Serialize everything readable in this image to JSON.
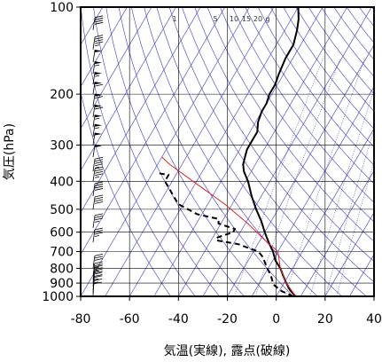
{
  "chart_data": {
    "type": "line",
    "xlabel": "気温(実線), 露点(破線)",
    "ylabel": "気圧(hPa)",
    "xlim": [
      -80,
      40
    ],
    "ylim": [
      1000,
      100
    ],
    "y_scale": "log",
    "x_ticks": [
      -80,
      -60,
      -40,
      -20,
      0,
      20,
      40
    ],
    "x_tick_labels": [
      "-80",
      "-60",
      "-40",
      "-20",
      "0",
      "20",
      "40"
    ],
    "y_ticks": [
      100,
      200,
      300,
      400,
      500,
      600,
      700,
      800,
      900,
      1000
    ],
    "y_tick_labels": [
      "100",
      "200",
      "300",
      "400",
      "500",
      "600",
      "700",
      "800",
      "900",
      "1000"
    ],
    "grid": true,
    "skew_deg_per_log_decade": 69,
    "mixing_ratio_labels": [
      {
        "value": 1,
        "text": "1"
      },
      {
        "value": 5,
        "text": "5"
      },
      {
        "value": 10,
        "text": "10"
      },
      {
        "value": 15,
        "text": "15"
      },
      {
        "value": 20,
        "text": "20"
      },
      {
        "value": null,
        "text": "g"
      }
    ],
    "colors": {
      "temperature": "#000000",
      "dewpoint": "#000000",
      "parcel": "#e02020",
      "background_lines": "#3a3ac8",
      "grid": "#000000"
    },
    "series": [
      {
        "key": "temperature",
        "style": "solid",
        "points": [
          [
            8,
            1000
          ],
          [
            4,
            950
          ],
          [
            1,
            900
          ],
          [
            -2,
            850
          ],
          [
            -5,
            800
          ],
          [
            -9,
            750
          ],
          [
            -12,
            700
          ],
          [
            -16,
            650
          ],
          [
            -20,
            600
          ],
          [
            -24,
            550
          ],
          [
            -29,
            500
          ],
          [
            -34,
            450
          ],
          [
            -39,
            400
          ],
          [
            -43,
            370
          ],
          [
            -45,
            350
          ],
          [
            -46,
            330
          ],
          [
            -47,
            310
          ],
          [
            -47,
            290
          ],
          [
            -47,
            270
          ],
          [
            -49,
            250
          ],
          [
            -50,
            230
          ],
          [
            -50,
            215
          ],
          [
            -51,
            200
          ],
          [
            -51,
            185
          ],
          [
            -52,
            170
          ],
          [
            -53,
            150
          ],
          [
            -53,
            135
          ],
          [
            -55,
            120
          ],
          [
            -57,
            110
          ],
          [
            -60,
            100
          ]
        ]
      },
      {
        "key": "dewpoint",
        "style": "dashed",
        "points": [
          [
            7,
            1000
          ],
          [
            1,
            960
          ],
          [
            -4,
            910
          ],
          [
            -7,
            850
          ],
          [
            -11,
            790
          ],
          [
            -15,
            730
          ],
          [
            -18,
            700
          ],
          [
            -28,
            660
          ],
          [
            -38,
            640
          ],
          [
            -38,
            625
          ],
          [
            -33,
            600
          ],
          [
            -33,
            585
          ],
          [
            -41,
            560
          ],
          [
            -42,
            540
          ],
          [
            -52,
            520
          ],
          [
            -62,
            480
          ],
          [
            -66,
            450
          ],
          [
            -70,
            420
          ],
          [
            -73,
            400
          ],
          [
            -73,
            380
          ],
          [
            -78,
            375
          ]
        ]
      },
      {
        "key": "parcel",
        "style": "solid",
        "points": [
          [
            8,
            1000
          ],
          [
            1,
            900
          ],
          [
            -5,
            800
          ],
          [
            -10,
            700
          ],
          [
            -18,
            640
          ],
          [
            -29,
            560
          ],
          [
            -43,
            480
          ],
          [
            -59,
            410
          ],
          [
            -75,
            350
          ],
          [
            -80,
            330
          ]
        ]
      }
    ],
    "wind_barbs": [
      {
        "p": 1000,
        "speed": 10,
        "dir": 200
      },
      {
        "p": 975,
        "speed": 15,
        "dir": 210
      },
      {
        "p": 950,
        "speed": 15,
        "dir": 220
      },
      {
        "p": 925,
        "speed": 20,
        "dir": 225
      },
      {
        "p": 900,
        "speed": 20,
        "dir": 230
      },
      {
        "p": 875,
        "speed": 25,
        "dir": 235
      },
      {
        "p": 850,
        "speed": 25,
        "dir": 240
      },
      {
        "p": 800,
        "speed": 30,
        "dir": 245
      },
      {
        "p": 650,
        "speed": 35,
        "dir": 250
      },
      {
        "p": 580,
        "speed": 35,
        "dir": 255
      },
      {
        "p": 500,
        "speed": 40,
        "dir": 260
      },
      {
        "p": 450,
        "speed": 40,
        "dir": 260
      },
      {
        "p": 400,
        "speed": 45,
        "dir": 265
      },
      {
        "p": 370,
        "speed": 45,
        "dir": 265
      },
      {
        "p": 330,
        "speed": 50,
        "dir": 270
      },
      {
        "p": 300,
        "speed": 50,
        "dir": 270
      },
      {
        "p": 280,
        "speed": 55,
        "dir": 270
      },
      {
        "p": 260,
        "speed": 55,
        "dir": 270
      },
      {
        "p": 240,
        "speed": 60,
        "dir": 270
      },
      {
        "p": 220,
        "speed": 60,
        "dir": 270
      },
      {
        "p": 200,
        "speed": 60,
        "dir": 270
      },
      {
        "p": 185,
        "speed": 55,
        "dir": 270
      },
      {
        "p": 170,
        "speed": 55,
        "dir": 270
      },
      {
        "p": 155,
        "speed": 50,
        "dir": 270
      },
      {
        "p": 140,
        "speed": 45,
        "dir": 270
      },
      {
        "p": 120,
        "speed": 40,
        "dir": 270
      }
    ]
  }
}
